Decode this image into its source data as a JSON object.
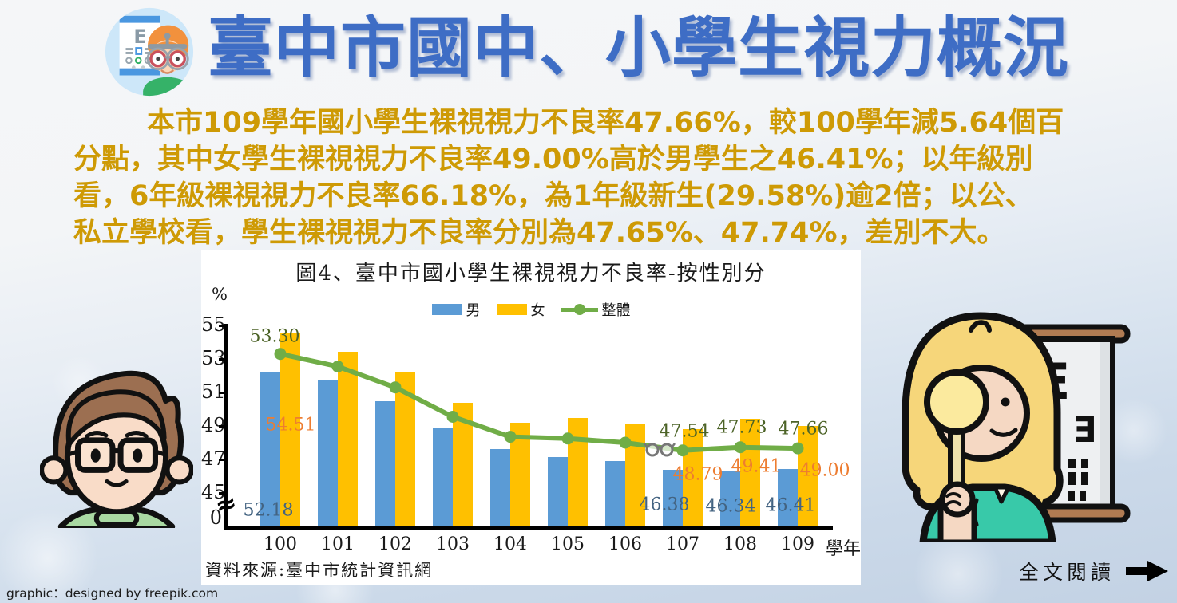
{
  "page": {
    "title": "臺中市國中、小學生視力概況",
    "intro_lines": [
      "本市109學年國小學生裸視視力不良率47.66%，較100學年減5.64個百",
      "分點，其中女學生裸視視力不良率49.00%高於男學生之46.41%；以年級別",
      "看，6年級裸視視力不良率66.18%，為1年級新生(29.58%)逾2倍；以公、",
      "私立學校看，學生裸視視力不良率分別為47.65%、47.74%，差別不大。"
    ],
    "read_more": "全文閱讀",
    "credit": "graphic：designed by freepik.com"
  },
  "chart": {
    "title": "圖4、臺中市國小學生裸視視力不良率-按性別分",
    "y_unit": "%",
    "x_unit": "學年",
    "source": "資料來源:臺中市統計資訊網"
  },
  "chart_data": {
    "type": "bar+line",
    "title": "圖4、臺中市國小學生裸視視力不良率-按性別分",
    "categories": [
      "100",
      "101",
      "102",
      "103",
      "104",
      "105",
      "106",
      "107",
      "108",
      "109"
    ],
    "xlabel": "學年",
    "ylabel": "%",
    "ylim": [
      45,
      55
    ],
    "y_ticks": [
      55,
      53,
      51,
      49,
      47,
      45
    ],
    "y_axis_break_to_zero": true,
    "grid": false,
    "legend_position": "top",
    "labeled_categories": [
      "100",
      "107",
      "108",
      "109"
    ],
    "series": [
      {
        "name": "男",
        "type": "bar",
        "color": "#5B9BD5",
        "label_color": "#436381",
        "values": [
          52.18,
          51.7,
          50.5,
          48.9,
          47.6,
          47.15,
          46.9,
          46.38,
          46.34,
          46.41
        ]
      },
      {
        "name": "女",
        "type": "bar",
        "color": "#FFC000",
        "label_color": "#ED7D31",
        "values": [
          54.51,
          53.45,
          52.2,
          50.4,
          49.2,
          49.5,
          49.15,
          48.79,
          49.41,
          49.0
        ]
      },
      {
        "name": "整體",
        "type": "line",
        "color": "#70AD47",
        "label_color": "#4C6327",
        "values": [
          53.3,
          52.55,
          51.3,
          49.55,
          48.35,
          48.25,
          48.0,
          47.54,
          47.73,
          47.66
        ]
      }
    ]
  }
}
